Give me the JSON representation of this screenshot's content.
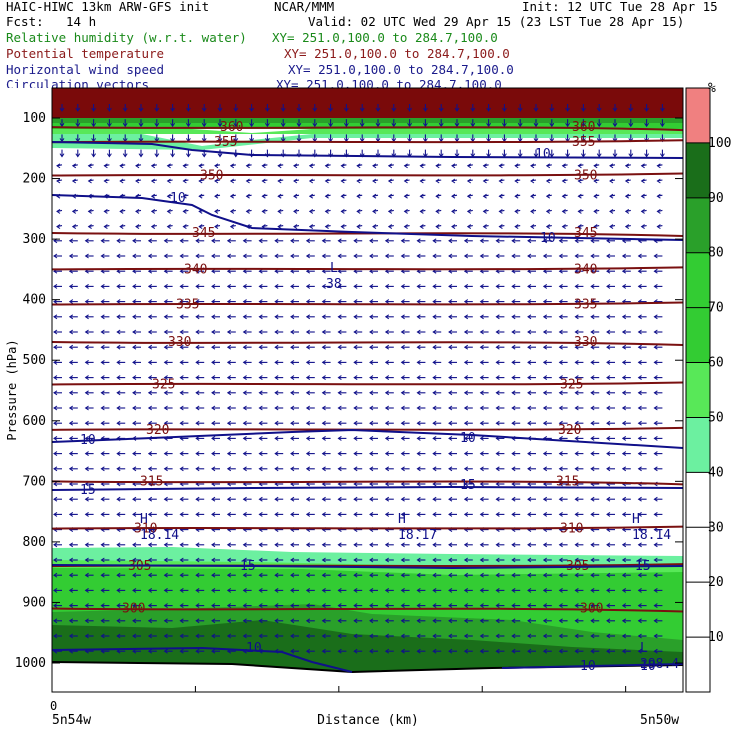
{
  "header": {
    "model": "HAIC-HIWC 13km ARW-GFS init",
    "org": "NCAR/MMM",
    "init": "Init: 12 UTC Tue 28 Apr 15",
    "fcst_label": "Fcst:",
    "fcst_value": "14 h",
    "valid": "Valid: 02 UTC Wed 29 Apr 15 (23 LST Tue 28 Apr 15)"
  },
  "legend": [
    {
      "label": "Relative humidity (w.r.t. water)",
      "xy": "XY= 251.0,100.0 to 284.7,100.0",
      "color": "#1a8a1a"
    },
    {
      "label": "Potential temperature",
      "xy": "XY= 251.0,100.0 to 284.7,100.0",
      "color": "#8b1a1a"
    },
    {
      "label": "Horizontal wind speed",
      "xy": "XY= 251.0,100.0 to 284.7,100.0",
      "color": "#1a1a8b"
    },
    {
      "label": "Circulation vectors",
      "xy": "XY= 251.0,100.0 to 284.7,100.0",
      "color": "#1a1a8b"
    }
  ],
  "colors": {
    "theta": "#7a1010",
    "wind": "#10108a",
    "rh_top": "#7a0a0a",
    "rh_100": "#1a6e1a",
    "rh_90": "#2aa02a",
    "rh_80": "#33cc33",
    "rh_60": "#58e858",
    "rh_50": "#6cf0a0",
    "rh_over": "#f08080"
  },
  "chart_data": {
    "type": "heatmap",
    "title": "",
    "xlabel": "Distance (km)",
    "ylabel": "Pressure (hPa)",
    "x_start_label": "5n54w",
    "x_end_label": "5n50w",
    "x_zero_label": "0",
    "y_ticks": [
      100,
      200,
      300,
      400,
      500,
      600,
      700,
      800,
      900,
      1000
    ],
    "colorbar": {
      "unit": "%",
      "ticks": [
        10,
        20,
        30,
        40,
        50,
        60,
        70,
        80,
        90,
        100
      ]
    },
    "theta_contours": [
      {
        "label": "300",
        "p": 910
      },
      {
        "label": "305",
        "p": 840
      },
      {
        "label": "310",
        "p": 778
      },
      {
        "label": "315",
        "p": 700
      },
      {
        "label": "320",
        "p": 615
      },
      {
        "label": "325",
        "p": 540
      },
      {
        "label": "330",
        "p": 470
      },
      {
        "label": "335",
        "p": 408
      },
      {
        "label": "340",
        "p": 350
      },
      {
        "label": "345",
        "p": 290
      },
      {
        "label": "350",
        "p": 195
      },
      {
        "label": "355",
        "p": 140
      },
      {
        "label": "360",
        "p": 115
      }
    ],
    "wind_labels": [
      {
        "label": "10",
        "p": 225
      },
      {
        "label": "10",
        "p": 295
      },
      {
        "label": "10",
        "p": 160
      },
      {
        "label": "10",
        "p": 640
      },
      {
        "label": "10",
        "p": 642
      },
      {
        "label": "15",
        "p": 708
      },
      {
        "label": "15",
        "p": 706
      },
      {
        "label": "15",
        "p": 842
      },
      {
        "label": "15",
        "p": 842
      },
      {
        "label": "15",
        "p": 842
      },
      {
        "label": "10",
        "p": 980
      },
      {
        "label": "10",
        "p": 1005
      },
      {
        "label": "10",
        "p": 1005
      }
    ],
    "extrema": [
      {
        "type": "L",
        "value": "38",
        "p": 360
      },
      {
        "type": "H",
        "value": "18.14",
        "p": 775
      },
      {
        "type": "H",
        "value": "18.17",
        "p": 765
      },
      {
        "type": "H",
        "value": "18.14",
        "p": 765
      },
      {
        "type": "L",
        "value": "298.4",
        "p": 995
      }
    ]
  }
}
